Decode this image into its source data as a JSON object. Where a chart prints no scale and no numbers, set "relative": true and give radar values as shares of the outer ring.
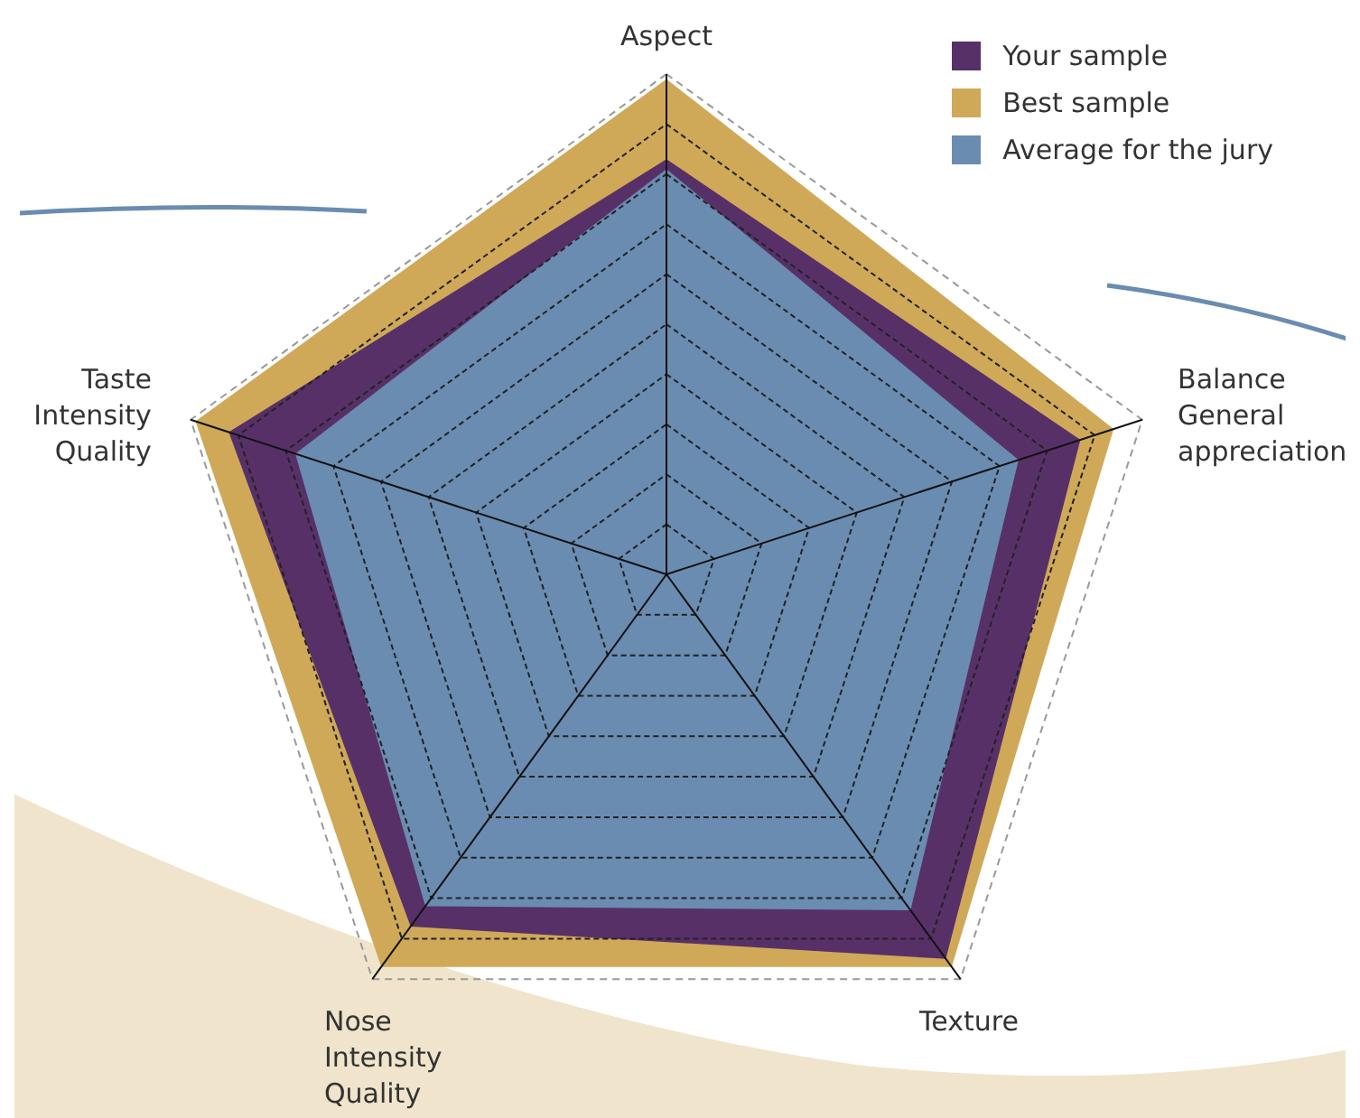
{
  "chart_data": {
    "type": "radar",
    "relative": true,
    "grid": true,
    "legend": "top right",
    "categories": [
      "Aspect",
      "Balance\nGeneral\nappreciation",
      "Texture",
      "Nose\nIntensity\nQuality",
      "Taste\nIntensity\nQuality"
    ],
    "series": [
      {
        "name": "Your sample",
        "color": "#583068",
        "values": [
          0.83,
          0.87,
          0.95,
          0.87,
          0.92
        ]
      },
      {
        "name": "Best sample",
        "color": "#cfa958",
        "values": [
          0.99,
          0.94,
          0.97,
          0.97,
          0.99
        ]
      },
      {
        "name": "Average for the jury",
        "color": "#6a8cb1",
        "values": [
          0.81,
          0.74,
          0.83,
          0.82,
          0.78
        ]
      }
    ]
  }
}
